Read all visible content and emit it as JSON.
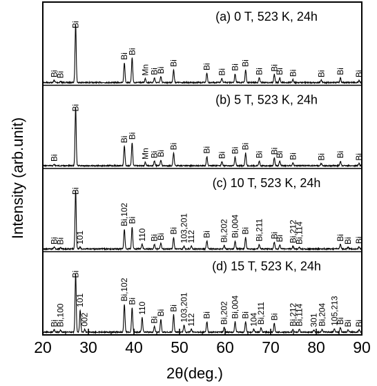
{
  "chart_data": {
    "type": "line",
    "xlabel": "2θ(deg.)",
    "ylabel": "Intensity (arb.unit)",
    "xlim": [
      20,
      90
    ],
    "xticks": [
      "20",
      "30",
      "40",
      "50",
      "60",
      "70",
      "80",
      "90"
    ],
    "stacked": true,
    "grid": false,
    "panels": [
      {
        "title": "(a) 0 T, 523 K, 24h",
        "peaks": [
          {
            "x": 22.5,
            "h": 0.04,
            "label": "Bi"
          },
          {
            "x": 23.9,
            "h": 0.02,
            "label": "Bi"
          },
          {
            "x": 27.2,
            "h": 1.0,
            "label": "Bi"
          },
          {
            "x": 37.9,
            "h": 0.34,
            "label": "Bi"
          },
          {
            "x": 39.6,
            "h": 0.42,
            "label": "Bi"
          },
          {
            "x": 42.5,
            "h": 0.07,
            "label": "Mn"
          },
          {
            "x": 44.5,
            "h": 0.08,
            "label": "Bi"
          },
          {
            "x": 45.9,
            "h": 0.1,
            "label": "Bi"
          },
          {
            "x": 48.7,
            "h": 0.22,
            "label": "Bi"
          },
          {
            "x": 56.0,
            "h": 0.16,
            "label": "Bi"
          },
          {
            "x": 59.3,
            "h": 0.07,
            "label": "Bi"
          },
          {
            "x": 62.2,
            "h": 0.15,
            "label": "Bi"
          },
          {
            "x": 64.5,
            "h": 0.22,
            "label": "Bi"
          },
          {
            "x": 67.5,
            "h": 0.08,
            "label": "Bi"
          },
          {
            "x": 70.8,
            "h": 0.14,
            "label": "Bi"
          },
          {
            "x": 72.0,
            "h": 0.08,
            "label": "Bi"
          },
          {
            "x": 74.9,
            "h": 0.05,
            "label": "Bi"
          },
          {
            "x": 81.1,
            "h": 0.04,
            "label": "Bi"
          },
          {
            "x": 85.3,
            "h": 0.08,
            "label": "Bi"
          },
          {
            "x": 89.4,
            "h": 0.04,
            "label": "Bi"
          }
        ]
      },
      {
        "title": "(b) 5 T, 523 K, 24h",
        "peaks": [
          {
            "x": 22.5,
            "h": 0.02,
            "label": "Bi"
          },
          {
            "x": 27.2,
            "h": 1.0,
            "label": "Bi"
          },
          {
            "x": 37.9,
            "h": 0.34,
            "label": "Bi"
          },
          {
            "x": 39.6,
            "h": 0.4,
            "label": "Bi"
          },
          {
            "x": 42.5,
            "h": 0.06,
            "label": "Mn"
          },
          {
            "x": 44.5,
            "h": 0.08,
            "label": "Bi"
          },
          {
            "x": 45.9,
            "h": 0.1,
            "label": "Bi"
          },
          {
            "x": 48.7,
            "h": 0.22,
            "label": "Bi"
          },
          {
            "x": 56.0,
            "h": 0.16,
            "label": "Bi"
          },
          {
            "x": 59.3,
            "h": 0.07,
            "label": "Bi"
          },
          {
            "x": 62.2,
            "h": 0.15,
            "label": "Bi"
          },
          {
            "x": 64.5,
            "h": 0.22,
            "label": "Bi"
          },
          {
            "x": 67.5,
            "h": 0.08,
            "label": "Bi"
          },
          {
            "x": 70.8,
            "h": 0.14,
            "label": "Bi"
          },
          {
            "x": 72.0,
            "h": 0.08,
            "label": "Bi"
          },
          {
            "x": 74.9,
            "h": 0.05,
            "label": "Bi"
          },
          {
            "x": 81.1,
            "h": 0.04,
            "label": "Bi"
          },
          {
            "x": 85.3,
            "h": 0.08,
            "label": "Bi"
          },
          {
            "x": 89.4,
            "h": 0.04,
            "label": "Bi"
          }
        ]
      },
      {
        "title": "(c) 10 T, 523 K, 24h",
        "peaks": [
          {
            "x": 22.5,
            "h": 0.03,
            "label": "Bi"
          },
          {
            "x": 23.9,
            "h": 0.02,
            "label": "Bi"
          },
          {
            "x": 27.2,
            "h": 1.0,
            "label": "Bi"
          },
          {
            "x": 28.2,
            "h": 0.03,
            "label": "101"
          },
          {
            "x": 37.9,
            "h": 0.34,
            "label": "Bi,102"
          },
          {
            "x": 39.6,
            "h": 0.38,
            "label": "Bi"
          },
          {
            "x": 41.8,
            "h": 0.08,
            "label": "110"
          },
          {
            "x": 44.5,
            "h": 0.08,
            "label": "Bi"
          },
          {
            "x": 45.9,
            "h": 0.1,
            "label": "Bi"
          },
          {
            "x": 48.7,
            "h": 0.2,
            "label": "Bi"
          },
          {
            "x": 51.0,
            "h": 0.05,
            "label": "103,201"
          },
          {
            "x": 52.6,
            "h": 0.05,
            "label": "112"
          },
          {
            "x": 56.0,
            "h": 0.14,
            "label": "Bi"
          },
          {
            "x": 59.8,
            "h": 0.06,
            "label": "Bi,202"
          },
          {
            "x": 62.2,
            "h": 0.14,
            "label": "Bi,004"
          },
          {
            "x": 64.5,
            "h": 0.2,
            "label": "Bi"
          },
          {
            "x": 67.5,
            "h": 0.08,
            "label": "Bi,211"
          },
          {
            "x": 70.8,
            "h": 0.12,
            "label": "Bi"
          },
          {
            "x": 72.0,
            "h": 0.07,
            "label": "Bi"
          },
          {
            "x": 74.9,
            "h": 0.05,
            "label": "Bi,212"
          },
          {
            "x": 76.3,
            "h": 0.03,
            "label": "Bi,114"
          },
          {
            "x": 85.3,
            "h": 0.08,
            "label": "Bi"
          },
          {
            "x": 87.0,
            "h": 0.03,
            "label": "Bi"
          },
          {
            "x": 89.4,
            "h": 0.04,
            "label": "Bi"
          }
        ]
      },
      {
        "title": "(d) 15 T, 523 K, 24h",
        "peaks": [
          {
            "x": 22.5,
            "h": 0.04,
            "label": "Bi"
          },
          {
            "x": 23.9,
            "h": 0.04,
            "label": "Bi,100"
          },
          {
            "x": 27.2,
            "h": 1.0,
            "label": "Bi"
          },
          {
            "x": 28.2,
            "h": 0.38,
            "label": "101"
          },
          {
            "x": 29.2,
            "h": 0.05,
            "label": "002"
          },
          {
            "x": 37.9,
            "h": 0.48,
            "label": "Bi,102"
          },
          {
            "x": 39.6,
            "h": 0.42,
            "label": "Bi"
          },
          {
            "x": 41.8,
            "h": 0.25,
            "label": "110"
          },
          {
            "x": 44.5,
            "h": 0.1,
            "label": "Bi"
          },
          {
            "x": 45.9,
            "h": 0.22,
            "label": "Bi"
          },
          {
            "x": 48.7,
            "h": 0.3,
            "label": "Bi"
          },
          {
            "x": 51.0,
            "h": 0.12,
            "label": "103,201"
          },
          {
            "x": 52.6,
            "h": 0.05,
            "label": "112"
          },
          {
            "x": 56.0,
            "h": 0.18,
            "label": "Bi"
          },
          {
            "x": 59.8,
            "h": 0.08,
            "label": "Bi,202"
          },
          {
            "x": 62.2,
            "h": 0.18,
            "label": "Bi,004"
          },
          {
            "x": 64.5,
            "h": 0.18,
            "label": "Bi"
          },
          {
            "x": 66.3,
            "h": 0.05,
            "label": "104"
          },
          {
            "x": 67.9,
            "h": 0.08,
            "label": "Bi,211"
          },
          {
            "x": 70.8,
            "h": 0.15,
            "label": "Bi"
          },
          {
            "x": 74.9,
            "h": 0.05,
            "label": "Bi,212"
          },
          {
            "x": 76.3,
            "h": 0.05,
            "label": "Bi,114"
          },
          {
            "x": 79.5,
            "h": 0.04,
            "label": "301"
          },
          {
            "x": 81.3,
            "h": 0.05,
            "label": "Bi,204"
          },
          {
            "x": 84.0,
            "h": 0.06,
            "label": "105,213"
          },
          {
            "x": 85.3,
            "h": 0.08,
            "label": "Bi"
          },
          {
            "x": 87.0,
            "h": 0.04,
            "label": "Bi"
          },
          {
            "x": 89.4,
            "h": 0.04,
            "label": "Bi"
          }
        ]
      }
    ]
  }
}
